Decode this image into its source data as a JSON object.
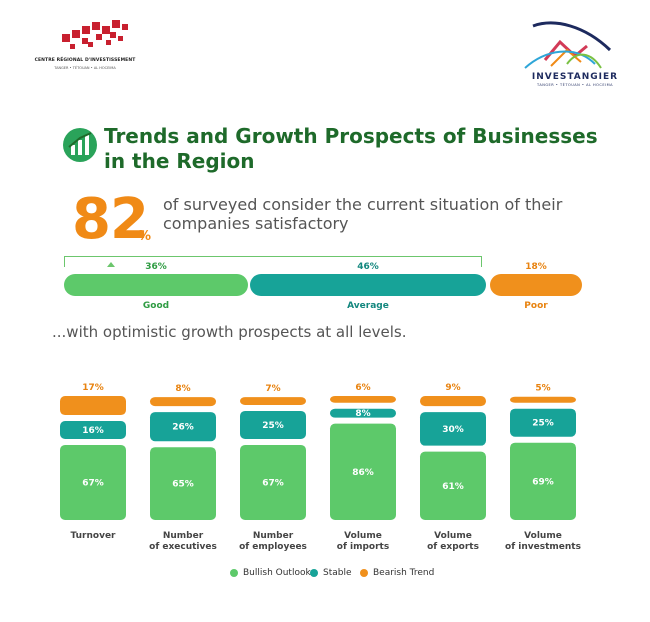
{
  "logos": {
    "cri_name": "CENTRE RÉGIONAL D'INVESTISSEMENT",
    "cri_sub": "TANGER • TÉTOUAN • AL HOCEIMA",
    "inv_name": "INVESTANGIER",
    "inv_sub": "TANGER • TÉTOUAN • AL HOCEIMA"
  },
  "title": "Trends and Growth Prospects of Businesses in the Region",
  "kpi": {
    "value": "82",
    "unit": "%",
    "text": "of surveyed consider the current situation of their companies satisfactory"
  },
  "satisfaction": [
    {
      "label": "Good",
      "pct": "36%",
      "color": "#5dc96a"
    },
    {
      "label": "Average",
      "pct": "46%",
      "color": "#17a398"
    },
    {
      "label": "Poor",
      "pct": "18%",
      "color": "#f0901c"
    }
  ],
  "subtitle": "...with optimistic growth prospects at all levels.",
  "colors": {
    "bullish": "#5dc96a",
    "stable": "#17a398",
    "bearish": "#f0901c",
    "bullish_text": "#2f9c43",
    "stable_text": "#13877e",
    "bearish_text": "#e88310"
  },
  "chart_data": {
    "type": "bar",
    "stacked": true,
    "categories": [
      "Turnover",
      "Number of executives",
      "Number of employees",
      "Volume of imports",
      "Volume of exports",
      "Volume of investments"
    ],
    "series": [
      {
        "name": "Bullish Outlook",
        "values": [
          67,
          65,
          67,
          86,
          61,
          69
        ],
        "color": "#5dc96a"
      },
      {
        "name": "Stable",
        "values": [
          16,
          26,
          25,
          8,
          30,
          25
        ],
        "color": "#17a398"
      },
      {
        "name": "Bearish Trend",
        "values": [
          17,
          8,
          7,
          6,
          9,
          5
        ],
        "color": "#f0901c"
      }
    ],
    "category_lines": [
      [
        "Turnover"
      ],
      [
        "Number",
        "of executives"
      ],
      [
        "Number",
        "of employees"
      ],
      [
        "Volume",
        "of imports"
      ],
      [
        "Volume",
        "of exports"
      ],
      [
        "Volume",
        "of investments"
      ]
    ],
    "legend": "bottom",
    "grid": false
  }
}
